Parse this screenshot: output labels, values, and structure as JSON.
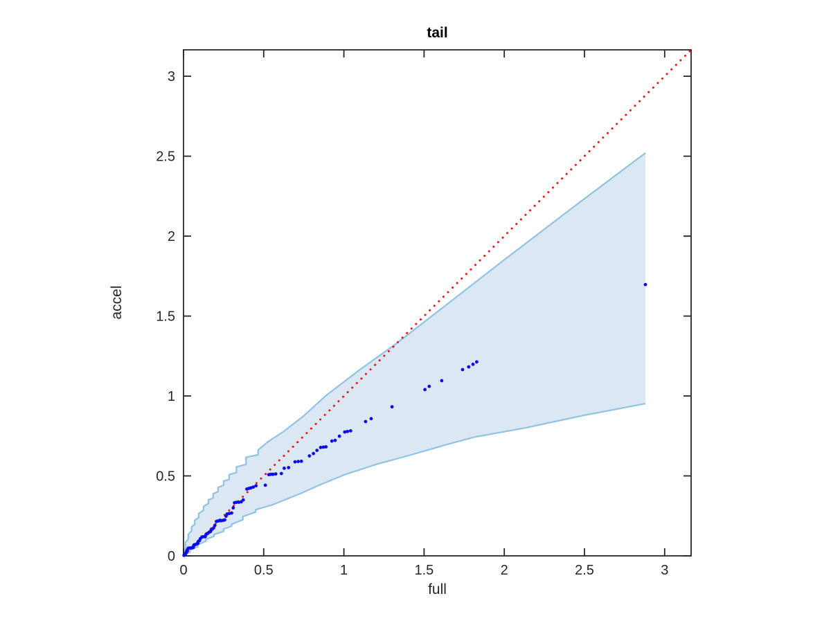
{
  "chart_data": {
    "type": "scatter",
    "title": "tail",
    "xlabel": "full",
    "ylabel": "accel",
    "xlim": [
      0,
      3.165
    ],
    "ylim": [
      0,
      3.165
    ],
    "xticks": [
      "0",
      "0.5",
      "1",
      "1.5",
      "2",
      "2.5",
      "3"
    ],
    "yticks": [
      "0",
      "0.5",
      "1",
      "1.5",
      "2",
      "2.5",
      "3"
    ],
    "grid": false,
    "box": true,
    "legend": "none",
    "colors": {
      "axis": "#262626",
      "tick_label": "#262626",
      "point": "#0a0aee",
      "identity_line": "#f01414",
      "band_fill": "#dbe8f4",
      "band_edge": "#8fc2e4",
      "background": "#ffffff"
    },
    "identity_line": {
      "style": "dotted",
      "from": [
        0,
        0
      ],
      "to": [
        3.165,
        3.165
      ]
    },
    "confidence_band": {
      "upper": [
        [
          0,
          0.015
        ],
        [
          0.012,
          0.05
        ],
        [
          0.012,
          0.085
        ],
        [
          0.03,
          0.105
        ],
        [
          0.03,
          0.135
        ],
        [
          0.05,
          0.155
        ],
        [
          0.05,
          0.18
        ],
        [
          0.07,
          0.197
        ],
        [
          0.07,
          0.222
        ],
        [
          0.095,
          0.24
        ],
        [
          0.095,
          0.265
        ],
        [
          0.125,
          0.285
        ],
        [
          0.125,
          0.31
        ],
        [
          0.155,
          0.327
        ],
        [
          0.155,
          0.35
        ],
        [
          0.185,
          0.362
        ],
        [
          0.185,
          0.388
        ],
        [
          0.215,
          0.402
        ],
        [
          0.215,
          0.428
        ],
        [
          0.25,
          0.442
        ],
        [
          0.25,
          0.468
        ],
        [
          0.285,
          0.478
        ],
        [
          0.285,
          0.508
        ],
        [
          0.33,
          0.522
        ],
        [
          0.33,
          0.557
        ],
        [
          0.39,
          0.572
        ],
        [
          0.39,
          0.617
        ],
        [
          0.465,
          0.632
        ],
        [
          0.465,
          0.662
        ],
        [
          0.53,
          0.716
        ],
        [
          0.62,
          0.775
        ],
        [
          0.75,
          0.876
        ],
        [
          0.885,
          1.0
        ],
        [
          1.1,
          1.165
        ],
        [
          1.33,
          1.33
        ],
        [
          1.6,
          1.54
        ],
        [
          2.0,
          1.852
        ],
        [
          2.45,
          2.196
        ],
        [
          2.88,
          2.52
        ]
      ],
      "lower": [
        [
          0,
          0.004
        ],
        [
          0.04,
          0.022
        ],
        [
          0.04,
          0.035
        ],
        [
          0.09,
          0.058
        ],
        [
          0.09,
          0.07
        ],
        [
          0.14,
          0.092
        ],
        [
          0.14,
          0.104
        ],
        [
          0.19,
          0.122
        ],
        [
          0.19,
          0.134
        ],
        [
          0.25,
          0.153
        ],
        [
          0.25,
          0.168
        ],
        [
          0.3,
          0.186
        ],
        [
          0.3,
          0.198
        ],
        [
          0.37,
          0.226
        ],
        [
          0.37,
          0.246
        ],
        [
          0.45,
          0.274
        ],
        [
          0.45,
          0.289
        ],
        [
          0.55,
          0.318
        ],
        [
          0.62,
          0.346
        ],
        [
          0.73,
          0.39
        ],
        [
          0.85,
          0.444
        ],
        [
          1.0,
          0.506
        ],
        [
          1.2,
          0.572
        ],
        [
          1.42,
          0.632
        ],
        [
          1.62,
          0.69
        ],
        [
          1.81,
          0.742
        ],
        [
          2.13,
          0.8
        ],
        [
          2.5,
          0.88
        ],
        [
          2.88,
          0.952
        ]
      ]
    },
    "points": [
      [
        0.003,
        0.003
      ],
      [
        0.006,
        0.006
      ],
      [
        0.01,
        0.008
      ],
      [
        0.012,
        0.012
      ],
      [
        0.015,
        0.018
      ],
      [
        0.018,
        0.022
      ],
      [
        0.02,
        0.028
      ],
      [
        0.022,
        0.032
      ],
      [
        0.025,
        0.04
      ],
      [
        0.03,
        0.048
      ],
      [
        0.04,
        0.05
      ],
      [
        0.05,
        0.05
      ],
      [
        0.06,
        0.052
      ],
      [
        0.062,
        0.06
      ],
      [
        0.065,
        0.068
      ],
      [
        0.072,
        0.07
      ],
      [
        0.08,
        0.073
      ],
      [
        0.09,
        0.078
      ],
      [
        0.092,
        0.09
      ],
      [
        0.1,
        0.096
      ],
      [
        0.105,
        0.108
      ],
      [
        0.115,
        0.118
      ],
      [
        0.125,
        0.12
      ],
      [
        0.135,
        0.12
      ],
      [
        0.14,
        0.133
      ],
      [
        0.15,
        0.14
      ],
      [
        0.16,
        0.148
      ],
      [
        0.168,
        0.152
      ],
      [
        0.172,
        0.16
      ],
      [
        0.18,
        0.168
      ],
      [
        0.188,
        0.175
      ],
      [
        0.195,
        0.19
      ],
      [
        0.205,
        0.215
      ],
      [
        0.215,
        0.218
      ],
      [
        0.225,
        0.22
      ],
      [
        0.235,
        0.22
      ],
      [
        0.247,
        0.222
      ],
      [
        0.257,
        0.225
      ],
      [
        0.265,
        0.248
      ],
      [
        0.272,
        0.262
      ],
      [
        0.285,
        0.265
      ],
      [
        0.3,
        0.268
      ],
      [
        0.31,
        0.3
      ],
      [
        0.318,
        0.332
      ],
      [
        0.33,
        0.335
      ],
      [
        0.345,
        0.335
      ],
      [
        0.36,
        0.338
      ],
      [
        0.372,
        0.35
      ],
      [
        0.395,
        0.418
      ],
      [
        0.408,
        0.422
      ],
      [
        0.42,
        0.425
      ],
      [
        0.435,
        0.43
      ],
      [
        0.452,
        0.438
      ],
      [
        0.51,
        0.442
      ],
      [
        0.532,
        0.508
      ],
      [
        0.545,
        0.51
      ],
      [
        0.558,
        0.51
      ],
      [
        0.575,
        0.512
      ],
      [
        0.61,
        0.515
      ],
      [
        0.628,
        0.548
      ],
      [
        0.655,
        0.552
      ],
      [
        0.695,
        0.588
      ],
      [
        0.715,
        0.59
      ],
      [
        0.735,
        0.592
      ],
      [
        0.785,
        0.625
      ],
      [
        0.81,
        0.64
      ],
      [
        0.832,
        0.66
      ],
      [
        0.855,
        0.678
      ],
      [
        0.872,
        0.68
      ],
      [
        0.888,
        0.682
      ],
      [
        0.925,
        0.718
      ],
      [
        0.945,
        0.722
      ],
      [
        0.972,
        0.748
      ],
      [
        1.005,
        0.775
      ],
      [
        1.022,
        0.778
      ],
      [
        1.042,
        0.782
      ],
      [
        1.135,
        0.84
      ],
      [
        1.17,
        0.858
      ],
      [
        1.3,
        0.932
      ],
      [
        1.505,
        1.04
      ],
      [
        1.532,
        1.06
      ],
      [
        1.61,
        1.096
      ],
      [
        1.74,
        1.165
      ],
      [
        1.778,
        1.182
      ],
      [
        1.805,
        1.198
      ],
      [
        1.828,
        1.213
      ],
      [
        2.88,
        1.697
      ]
    ]
  }
}
